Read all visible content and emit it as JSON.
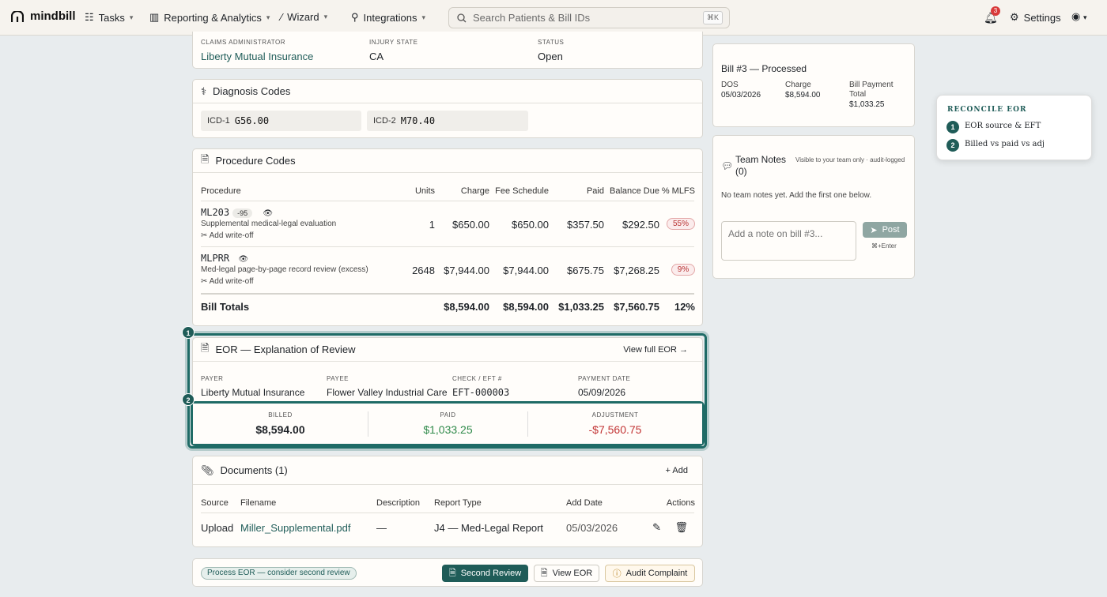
{
  "nav": {
    "logo": "mindbill",
    "tasks": "Tasks",
    "reporting": "Reporting & Analytics",
    "wizard": "Wizard",
    "integrations": "Integrations",
    "search_placeholder": "Search Patients & Bill IDs",
    "search_kbd": "⌘K",
    "notif_count": "3",
    "settings": "Settings"
  },
  "claims": {
    "admin_label": "CLAIMS ADMINISTRATOR",
    "admin_value": "Liberty Mutual Insurance",
    "state_label": "INJURY STATE",
    "state_value": "CA",
    "status_label": "STATUS",
    "status_value": "Open"
  },
  "diagnosis": {
    "title": "Diagnosis Codes",
    "codes": [
      {
        "label": "ICD-1",
        "code": "G56.00"
      },
      {
        "label": "ICD-2",
        "code": "M70.40"
      }
    ]
  },
  "procedures": {
    "title": "Procedure Codes",
    "headers": [
      "Procedure",
      "Units",
      "Charge",
      "Fee Schedule",
      "Paid",
      "Balance Due",
      "% MLFS"
    ],
    "rows": [
      {
        "code": "ML203",
        "modifier": "-95",
        "desc": "Supplemental medical-legal evaluation",
        "writeoff": "Add write-off",
        "units": "1",
        "charge": "$650.00",
        "fee": "$650.00",
        "paid": "$357.50",
        "balance": "$292.50",
        "pct": "55%"
      },
      {
        "code": "MLPRR",
        "desc": "Med-legal page-by-page record review (excess)",
        "writeoff": "Add write-off",
        "units": "2648",
        "charge": "$7,944.00",
        "fee": "$7,944.00",
        "paid": "$675.75",
        "balance": "$7,268.25",
        "pct": "9%"
      }
    ],
    "totals": {
      "label": "Bill Totals",
      "charge": "$8,594.00",
      "fee": "$8,594.00",
      "paid": "$1,033.25",
      "balance": "$7,560.75",
      "pct": "12%"
    }
  },
  "eor": {
    "title": "EOR — Explanation of Review",
    "view_full": "View full EOR →",
    "payer_label": "PAYER",
    "payer": "Liberty Mutual Insurance",
    "payee_label": "PAYEE",
    "payee": "Flower Valley Industrial Care",
    "check_label": "CHECK / EFT #",
    "check": "EFT-000003",
    "date_label": "PAYMENT DATE",
    "date": "05/09/2026",
    "billed_label": "BILLED",
    "billed": "$8,594.00",
    "paid_label": "PAID",
    "paid": "$1,033.25",
    "adj_label": "ADJUSTMENT",
    "adj": "-$7,560.75"
  },
  "documents": {
    "title": "Documents (1)",
    "add": "+ Add",
    "headers": [
      "Source",
      "Filename",
      "Description",
      "Report Type",
      "Add Date",
      "Actions"
    ],
    "rows": [
      {
        "source": "Upload",
        "filename": "Miller_Supplemental.pdf",
        "description": "—",
        "type": "J4 — Med-Legal Report",
        "date": "05/03/2026"
      }
    ]
  },
  "footer": {
    "pill": "Process EOR — consider second review",
    "second_review": "Second Review",
    "view_eor": "View EOR",
    "audit": "Audit Complaint"
  },
  "bill": {
    "title": "Bill #3 — Processed",
    "dos_label": "DOS",
    "dos": "05/03/2026",
    "charge_label": "Charge",
    "charge": "$8,594.00",
    "payment_label": "Bill Payment Total",
    "payment": "$1,033.25"
  },
  "notes": {
    "title": "Team Notes (0)",
    "visibility": "Visible to your team only · audit-logged",
    "empty": "No team notes yet. Add the first one below.",
    "placeholder": "Add a note on bill #3...",
    "post": "Post",
    "shortcut": "⌘+Enter"
  },
  "tooltip": {
    "title": "RECONCILE EOR",
    "steps": [
      "EOR source & EFT",
      "Billed vs paid vs adj"
    ]
  },
  "steps": [
    "1",
    "2"
  ]
}
